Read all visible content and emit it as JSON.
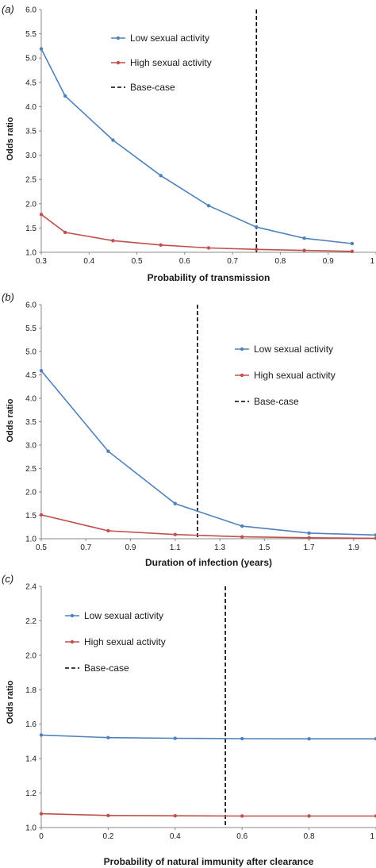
{
  "colors": {
    "low": "#4f81bd",
    "high": "#c0504d",
    "basecase": "#000000",
    "axis": "#888888"
  },
  "chart_data": [
    {
      "panel": "(a)",
      "type": "line",
      "xlabel": "Probability of transmission",
      "ylabel": "Odds ratio",
      "xlim": [
        0.3,
        1
      ],
      "ylim": [
        1.0,
        6.0
      ],
      "xticks": [
        0.3,
        0.4,
        0.5,
        0.6,
        0.7,
        0.8,
        0.9,
        1
      ],
      "xtick_labels": [
        "0.3",
        "0.4",
        "0.5",
        "0.6",
        "0.7",
        "0.8",
        "0.9",
        "1"
      ],
      "yticks": [
        1.0,
        1.5,
        2.0,
        2.5,
        3.0,
        3.5,
        4.0,
        4.5,
        5.0,
        5.5,
        6.0
      ],
      "ytick_labels": [
        "1.0",
        "1.5",
        "2.0",
        "2.5",
        "3.0",
        "3.5",
        "4.0",
        "4.5",
        "5.0",
        "5.5",
        "6.0"
      ],
      "legend_position": "top-center",
      "series": [
        {
          "name": "Low sexual activity",
          "key": "low",
          "x": [
            0.3,
            0.35,
            0.45,
            0.55,
            0.65,
            0.75,
            0.85,
            0.95
          ],
          "y": [
            5.19,
            4.22,
            3.31,
            2.58,
            1.96,
            1.52,
            1.29,
            1.18
          ]
        },
        {
          "name": "High sexual activity",
          "key": "high",
          "x": [
            0.3,
            0.35,
            0.45,
            0.55,
            0.65,
            0.75,
            0.85,
            0.95
          ],
          "y": [
            1.78,
            1.41,
            1.24,
            1.15,
            1.09,
            1.06,
            1.04,
            1.02
          ]
        }
      ],
      "basecase": {
        "name": "Base-case",
        "x": 0.75
      }
    },
    {
      "panel": "(b)",
      "type": "line",
      "xlabel": "Duration of infection (years)",
      "ylabel": "Odds ratio",
      "xlim": [
        0.5,
        2.0
      ],
      "ylim": [
        1.0,
        6.0
      ],
      "xticks": [
        0.5,
        0.7,
        0.9,
        1.1,
        1.3,
        1.5,
        1.7,
        1.9
      ],
      "xtick_labels": [
        "0.5",
        "0.7",
        "0.9",
        "1.1",
        "1.3",
        "1.5",
        "1.7",
        "1.9"
      ],
      "yticks": [
        1.0,
        1.5,
        2.0,
        2.5,
        3.0,
        3.5,
        4.0,
        4.5,
        5.0,
        5.5,
        6.0
      ],
      "ytick_labels": [
        "1.0",
        "1.5",
        "2.0",
        "2.5",
        "3.0",
        "3.5",
        "4.0",
        "4.5",
        "5.0",
        "5.5",
        "6.0"
      ],
      "legend_position": "middle-right",
      "series": [
        {
          "name": "Low sexual activity",
          "key": "low",
          "x": [
            0.5,
            0.8,
            1.1,
            1.4,
            1.7,
            2.0
          ],
          "y": [
            4.59,
            2.87,
            1.75,
            1.27,
            1.12,
            1.08
          ]
        },
        {
          "name": "High sexual activity",
          "key": "high",
          "x": [
            0.5,
            0.8,
            1.1,
            1.4,
            1.7,
            2.0
          ],
          "y": [
            1.51,
            1.17,
            1.09,
            1.04,
            1.02,
            1.01
          ]
        }
      ],
      "basecase": {
        "name": "Base-case",
        "x": 1.2
      }
    },
    {
      "panel": "(c)",
      "type": "line",
      "xlabel": "Probability of natural immunity after clearance",
      "ylabel": "Odds ratio",
      "xlim": [
        0,
        1
      ],
      "ylim": [
        1.0,
        2.4
      ],
      "xticks": [
        0,
        0.2,
        0.4,
        0.6,
        0.8,
        1
      ],
      "xtick_labels": [
        "0",
        "0.2",
        "0.4",
        "0.6",
        "0.8",
        "1"
      ],
      "yticks": [
        1.0,
        1.2,
        1.4,
        1.6,
        1.8,
        2.0,
        2.2,
        2.4
      ],
      "ytick_labels": [
        "1.0",
        "1.2",
        "1.4",
        "1.6",
        "1.8",
        "2.0",
        "2.2",
        "2.4"
      ],
      "legend_position": "top-left",
      "series": [
        {
          "name": "Low sexual activity",
          "key": "low",
          "x": [
            0,
            0.2,
            0.4,
            0.6,
            0.8,
            1
          ],
          "y": [
            1.537,
            1.522,
            1.518,
            1.516,
            1.515,
            1.515
          ]
        },
        {
          "name": "High sexual activity",
          "key": "high",
          "x": [
            0,
            0.2,
            0.4,
            0.6,
            0.8,
            1
          ],
          "y": [
            1.08,
            1.07,
            1.068,
            1.067,
            1.067,
            1.067
          ]
        }
      ],
      "basecase": {
        "name": "Base-case",
        "x": 0.55
      }
    }
  ]
}
